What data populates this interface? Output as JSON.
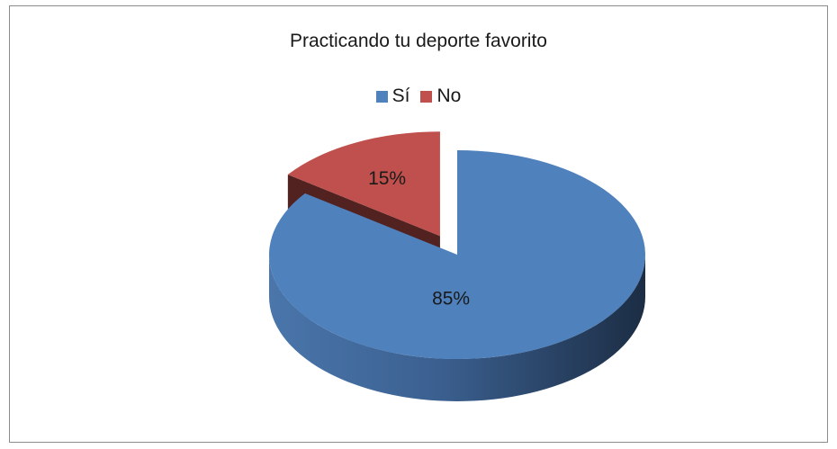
{
  "chart_data": {
    "type": "pie",
    "title": "Practicando tu deporte favorito",
    "categories": [
      "Sí",
      "No"
    ],
    "values": [
      85,
      15
    ],
    "labels": [
      "85%",
      "15%"
    ],
    "colors": [
      "#4f81bd",
      "#c0504d"
    ],
    "legend_position": "top",
    "style": "3d-exploded"
  }
}
